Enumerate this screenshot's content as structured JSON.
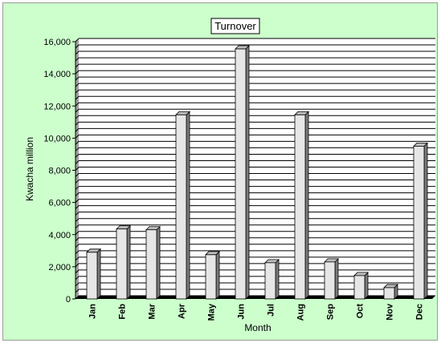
{
  "chart_data": {
    "type": "bar",
    "title": "Turnover",
    "xlabel": "Month",
    "ylabel": "Kwacha million",
    "categories": [
      "Jan",
      "Feb",
      "Mar",
      "Apr",
      "May",
      "Jun",
      "Jul",
      "Aug",
      "Sep",
      "Oct",
      "Nov",
      "Dec"
    ],
    "values": [
      2900,
      4350,
      4300,
      11450,
      2750,
      15550,
      2250,
      11450,
      2300,
      1450,
      700,
      9500
    ],
    "ylim": [
      0,
      16000
    ],
    "yticks": [
      0,
      2000,
      4000,
      6000,
      8000,
      10000,
      12000,
      14000,
      16000
    ],
    "ytick_labels": [
      "0",
      "2,000",
      "4,000",
      "6,000",
      "8,000",
      "10,000",
      "12,000",
      "14,000",
      "16,000"
    ],
    "grid": true,
    "legend": "none",
    "colors": {
      "background": "#ccffcc",
      "plot_background": "#ffffff",
      "bar_front": "#e6e6e6",
      "bar_side": "#7a7a7a",
      "bar_top": "#bdbdbd",
      "gridline": "#000000"
    }
  }
}
